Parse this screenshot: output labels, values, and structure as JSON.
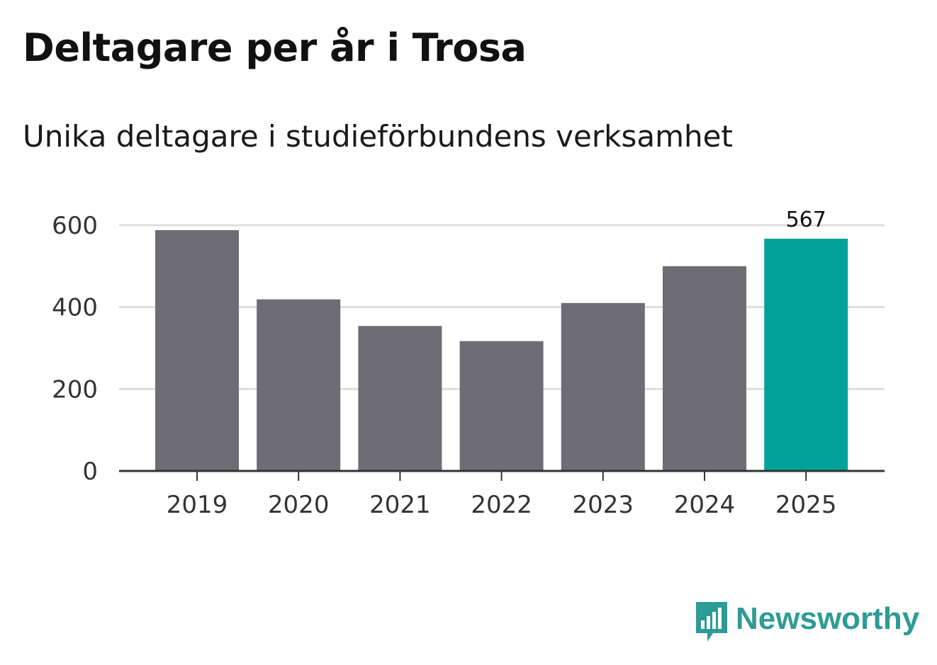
{
  "header": {
    "title": "Deltagare per år i Trosa",
    "subtitle": "Unika deltagare i studieförbundens verksamhet"
  },
  "chart_data": {
    "type": "bar",
    "title": "Deltagare per år i Trosa",
    "subtitle": "Unika deltagare i studieförbundens verksamhet",
    "categories": [
      "2019",
      "2020",
      "2021",
      "2022",
      "2023",
      "2024",
      "2025"
    ],
    "values": [
      588,
      419,
      354,
      317,
      410,
      500,
      567
    ],
    "highlight_index": 6,
    "data_labels": [
      {
        "index": 6,
        "text": "567"
      }
    ],
    "ylim": [
      0,
      600
    ],
    "yticks": [
      0,
      200,
      400,
      600
    ],
    "xlabel": "",
    "ylabel": "",
    "grid": true,
    "colors": {
      "bar": "#6e6d73",
      "highlight": "#00a398",
      "grid": "#dddddd",
      "axis": "#333333"
    }
  },
  "brand": {
    "name": "Newsworthy",
    "icon": "newsworthy-logo-icon",
    "color": "#2e9b94"
  }
}
